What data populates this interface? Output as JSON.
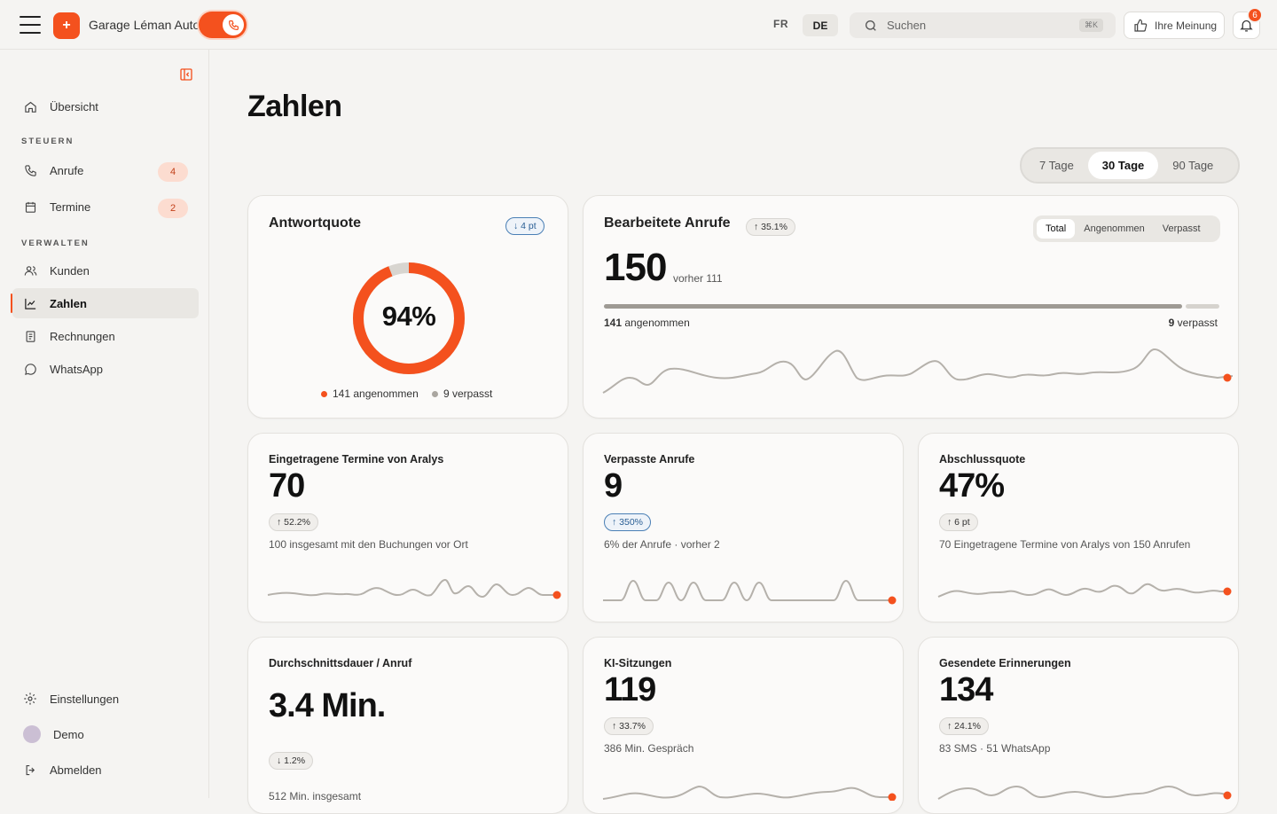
{
  "header": {
    "brand_name": "Garage Léman Auto",
    "brand_logo_glyph": "+",
    "lang_fr": "FR",
    "lang_de": "DE",
    "search_placeholder": "Suchen",
    "search_shortcut": "⌘K",
    "feedback_label": "Ihre Meinung",
    "notification_count": "6"
  },
  "sidebar": {
    "overview": "Übersicht",
    "section_steuern": "STEUERN",
    "calls": "Anrufe",
    "calls_count": "4",
    "appointments": "Termine",
    "appointments_count": "2",
    "section_verwalten": "VERWALTEN",
    "customers": "Kunden",
    "numbers": "Zahlen",
    "invoices": "Rechnungen",
    "whatsapp": "WhatsApp",
    "settings": "Einstellungen",
    "user": "Demo",
    "logout": "Abmelden"
  },
  "main": {
    "title": "Zahlen",
    "ranges": [
      "7 Tage",
      "30 Tage",
      "90 Tage"
    ],
    "active_range": "30 Tage"
  },
  "cards": {
    "answer_rate": {
      "title": "Antwortquote",
      "delta": "↓ 4 pt",
      "value": "94%",
      "percent": 94,
      "legend_answered": "141 angenommen",
      "legend_missed": "9 verpasst"
    },
    "handled_calls": {
      "title": "Bearbeitete Anrufe",
      "delta": "↑ 35.1%",
      "value": "150",
      "previous": "vorher 111",
      "tabs": [
        "Total",
        "Angenommen",
        "Verpasst"
      ],
      "answered_count": "141",
      "answered_label": "angenommen",
      "missed_count": "9",
      "missed_label": "verpasst",
      "answered_fraction": 0.94
    },
    "appointments": {
      "title": "Eingetragene Termine von Aralys",
      "value": "70",
      "delta": "↑ 52.2%",
      "note": "100 insgesamt mit den Buchungen vor Ort"
    },
    "missed": {
      "title": "Verpasste Anrufe",
      "value": "9",
      "delta": "↑ 350%",
      "note": "6% der Anrufe · vorher 2"
    },
    "closing": {
      "title": "Abschlussquote",
      "value": "47%",
      "delta": "↑ 6 pt",
      "note": "70 Eingetragene Termine von Aralys von 150 Anrufen"
    },
    "duration": {
      "title": "Durchschnittsdauer / Anruf",
      "value": "3.4 Min.",
      "delta": "↓ 1.2%",
      "note": "512 Min. insgesamt"
    },
    "ai_sessions": {
      "title": "KI-Sitzungen",
      "value": "119",
      "delta": "↑ 33.7%",
      "note": "386 Min. Gespräch"
    },
    "reminders": {
      "title": "Gesendete Erinnerungen",
      "value": "134",
      "delta": "↑ 24.1%",
      "note": "83 SMS · 51 WhatsApp"
    }
  },
  "colors": {
    "accent": "#f4511e",
    "sparkline": "#b5b1ab",
    "missed": "#9e9a94"
  }
}
